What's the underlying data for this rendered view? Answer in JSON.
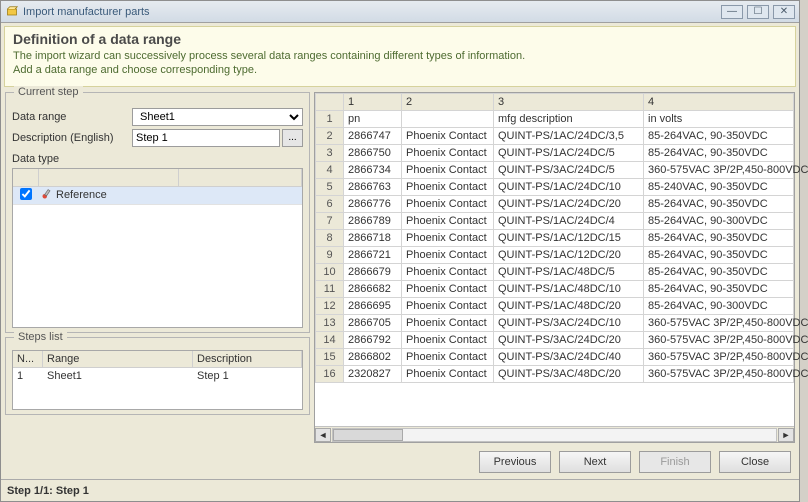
{
  "window": {
    "title": "Import manufacturer parts"
  },
  "header": {
    "title": "Definition of a data range",
    "line1": "The import wizard can successively process several data ranges containing different types of information.",
    "line2": "Add a data range and choose corresponding type."
  },
  "current_step": {
    "legend": "Current step",
    "data_range_label": "Data range",
    "data_range_value": "Sheet1",
    "description_label": "Description (English)",
    "description_value": "Step 1",
    "data_type_label": "Data type",
    "data_type_selected": "Reference",
    "browse_label": "..."
  },
  "steps": {
    "legend": "Steps list",
    "columns": [
      "N...",
      "Range",
      "Description"
    ],
    "rows": [
      {
        "n": "1",
        "range": "Sheet1",
        "description": "Step 1"
      }
    ]
  },
  "grid": {
    "columns": [
      "1",
      "2",
      "3",
      "4"
    ],
    "header_row": [
      "pn",
      "",
      "mfg description",
      "in volts"
    ],
    "rows": [
      [
        "2866747",
        "Phoenix Contact",
        "QUINT-PS/1AC/24DC/3,5",
        "85-264VAC, 90-350VDC"
      ],
      [
        "2866750",
        "Phoenix Contact",
        "QUINT-PS/1AC/24DC/5",
        "85-264VAC, 90-350VDC"
      ],
      [
        "2866734",
        "Phoenix Contact",
        "QUINT-PS/3AC/24DC/5",
        "360-575VAC 3P/2P,450-800VDC"
      ],
      [
        "2866763",
        "Phoenix Contact",
        "QUINT-PS/1AC/24DC/10",
        "85-240VAC, 90-350VDC"
      ],
      [
        "2866776",
        "Phoenix Contact",
        "QUINT-PS/1AC/24DC/20",
        "85-264VAC, 90-350VDC"
      ],
      [
        "2866789",
        "Phoenix Contact",
        "QUINT-PS/1AC/24DC/4",
        "85-264VAC, 90-300VDC"
      ],
      [
        "2866718",
        "Phoenix Contact",
        "QUINT-PS/1AC/12DC/15",
        "85-264VAC, 90-350VDC"
      ],
      [
        "2866721",
        "Phoenix Contact",
        "QUINT-PS/1AC/12DC/20",
        "85-264VAC, 90-350VDC"
      ],
      [
        "2866679",
        "Phoenix Contact",
        "QUINT-PS/1AC/48DC/5",
        "85-264VAC, 90-350VDC"
      ],
      [
        "2866682",
        "Phoenix Contact",
        "QUINT-PS/1AC/48DC/10",
        "85-264VAC, 90-350VDC"
      ],
      [
        "2866695",
        "Phoenix Contact",
        "QUINT-PS/1AC/48DC/20",
        "85-264VAC, 90-300VDC"
      ],
      [
        "2866705",
        "Phoenix Contact",
        "QUINT-PS/3AC/24DC/10",
        "360-575VAC 3P/2P,450-800VDC"
      ],
      [
        "2866792",
        "Phoenix Contact",
        "QUINT-PS/3AC/24DC/20",
        "360-575VAC 3P/2P,450-800VDC"
      ],
      [
        "2866802",
        "Phoenix Contact",
        "QUINT-PS/3AC/24DC/40",
        "360-575VAC 3P/2P,450-800VDC"
      ],
      [
        "2320827",
        "Phoenix Contact",
        "QUINT-PS/3AC/48DC/20",
        "360-575VAC 3P/2P,450-800VDC"
      ]
    ]
  },
  "footer": {
    "status": "Step 1/1: Step 1",
    "previous": "Previous",
    "next": "Next",
    "finish": "Finish",
    "close": "Close"
  },
  "style": {
    "header_bg": "#fdfcea",
    "header_text": "#4d6b30",
    "selected_row_bg": "#dde8f7",
    "grid_border": "#d4d4d4"
  }
}
